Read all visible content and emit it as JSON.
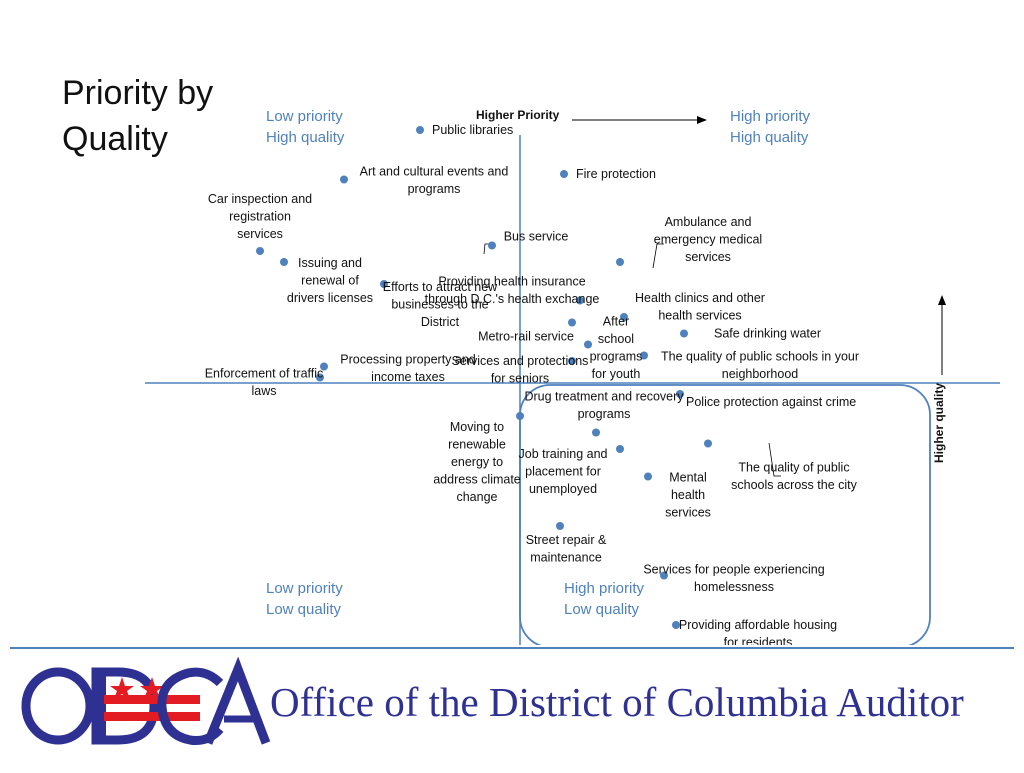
{
  "page_title": "Priority by\nQuality",
  "footer": {
    "logo_text": "ODCA",
    "org_name": "Office of the District of Columbia Auditor"
  },
  "colors": {
    "accent": "#4f81bd",
    "axis": "#4f81bd",
    "point": "#4f81bd",
    "logo_blue": "#2e3192",
    "logo_red": "#e31b23"
  },
  "chart_data": {
    "type": "scatter",
    "title": "Priority by Quality",
    "xlabel": "Higher Priority",
    "ylabel": "Higher quality",
    "grid": false,
    "legend": "none",
    "quadrants": {
      "top_left": [
        "Low priority",
        "High quality"
      ],
      "top_right": [
        "High priority",
        "High quality"
      ],
      "bottom_left": [
        "Low priority",
        "Low quality"
      ],
      "bottom_right": [
        "High priority",
        "Low quality"
      ]
    },
    "points": [
      {
        "label": "Public libraries",
        "x": -1.25,
        "y": 2.3
      },
      {
        "label": "Art and cultural events and\nprograms",
        "x": -2.2,
        "y": 1.85
      },
      {
        "label": "Fire protection",
        "x": 0.55,
        "y": 1.9
      },
      {
        "label": "Car inspection and\nregistration\nservices",
        "x": -3.25,
        "y": 1.2
      },
      {
        "label": "Bus service",
        "x": -0.35,
        "y": 1.25
      },
      {
        "label": "Ambulance and\nemergency medical\nservices",
        "x": 1.25,
        "y": 1.1
      },
      {
        "label": "Issuing and\nrenewal of\ndrivers licenses",
        "x": -2.95,
        "y": 1.1
      },
      {
        "label": "Efforts to attract new\nbusinesses to the\nDistrict",
        "x": -1.7,
        "y": 0.9
      },
      {
        "label": "Providing health insurance\nthrough D.C.'s health exchange",
        "x": 0.75,
        "y": 0.75
      },
      {
        "label": "Health clinics and other\nhealth services",
        "x": 1.3,
        "y": 0.6
      },
      {
        "label": "Metro-rail service",
        "x": 0.65,
        "y": 0.55
      },
      {
        "label": "Safe drinking water",
        "x": 2.05,
        "y": 0.45
      },
      {
        "label": "After\nschool\nprograms\nfor youth",
        "x": 0.85,
        "y": 0.35
      },
      {
        "label": "The quality of public schools in your\nneighborhood",
        "x": 1.55,
        "y": 0.25
      },
      {
        "label": "Services and protections\nfor seniors",
        "x": 0.65,
        "y": 0.2
      },
      {
        "label": "Processing property and\nincome taxes",
        "x": -2.45,
        "y": 0.15
      },
      {
        "label": "Enforcement of traffic\nlaws",
        "x": -2.5,
        "y": 0.05
      },
      {
        "label": "Police protection against crime",
        "x": 2.0,
        "y": -0.1
      },
      {
        "label": "Drug treatment and recovery\nprograms",
        "x": 0.95,
        "y": -0.45
      },
      {
        "label": "Moving to\nrenewable\nenergy to\naddress climate\nchange",
        "x": 0.0,
        "y": -0.3
      },
      {
        "label": "Job training and\nplacement for\nunemployed",
        "x": 1.25,
        "y": -0.6
      },
      {
        "label": "The quality of public\nschools across the city",
        "x": 2.35,
        "y": -0.55
      },
      {
        "label": "Mental\nhealth\nservices",
        "x": 1.6,
        "y": -0.85
      },
      {
        "label": "Street repair &\nmaintenance",
        "x": 0.5,
        "y": -1.3
      },
      {
        "label": "Services for people experiencing\nhomelessness",
        "x": 1.8,
        "y": -1.75
      },
      {
        "label": "Providing affordable housing\nfor residents",
        "x": 1.95,
        "y": -2.2
      }
    ]
  }
}
